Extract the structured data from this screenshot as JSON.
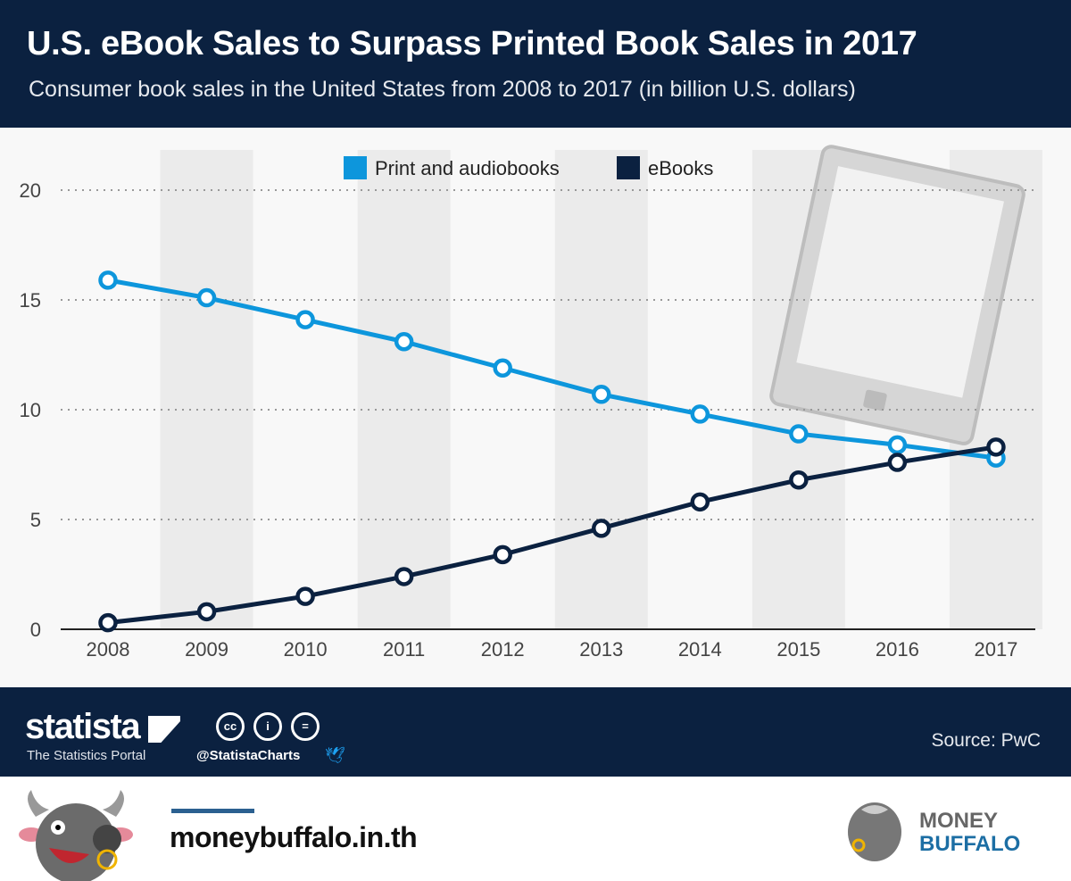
{
  "header": {
    "title": "U.S. eBook Sales to Surpass Printed Book Sales in 2017",
    "subtitle": "Consumer book sales in the United States from 2008 to 2017 (in billion U.S. dollars)"
  },
  "chart_data": {
    "type": "line",
    "title": "U.S. eBook Sales to Surpass Printed Book Sales in 2017",
    "xlabel": "",
    "ylabel": "",
    "categories": [
      "2008",
      "2009",
      "2010",
      "2011",
      "2012",
      "2013",
      "2014",
      "2015",
      "2016",
      "2017"
    ],
    "yticks": [
      "0",
      "5",
      "10",
      "15",
      "20"
    ],
    "ylim": [
      0,
      20
    ],
    "grid": true,
    "legend": "top-center",
    "series": [
      {
        "name": "Print and audiobooks",
        "color": "#0d96dc",
        "values": [
          15.9,
          15.1,
          14.1,
          13.1,
          11.9,
          10.7,
          9.8,
          8.9,
          8.4,
          7.8
        ]
      },
      {
        "name": "eBooks",
        "color": "#0b2140",
        "values": [
          0.3,
          0.8,
          1.5,
          2.4,
          3.4,
          4.6,
          5.8,
          6.8,
          7.6,
          8.3
        ]
      }
    ]
  },
  "footer": {
    "brand": "statista",
    "tagline": "The Statistics Portal",
    "handle": "@StatistaCharts",
    "cc": [
      "cc",
      "i",
      "="
    ],
    "source": "Source: PwC"
  },
  "bottom": {
    "site": "moneybuffalo.in.th",
    "logo_line1": "MONEY",
    "logo_line2": "BUFFALO"
  }
}
